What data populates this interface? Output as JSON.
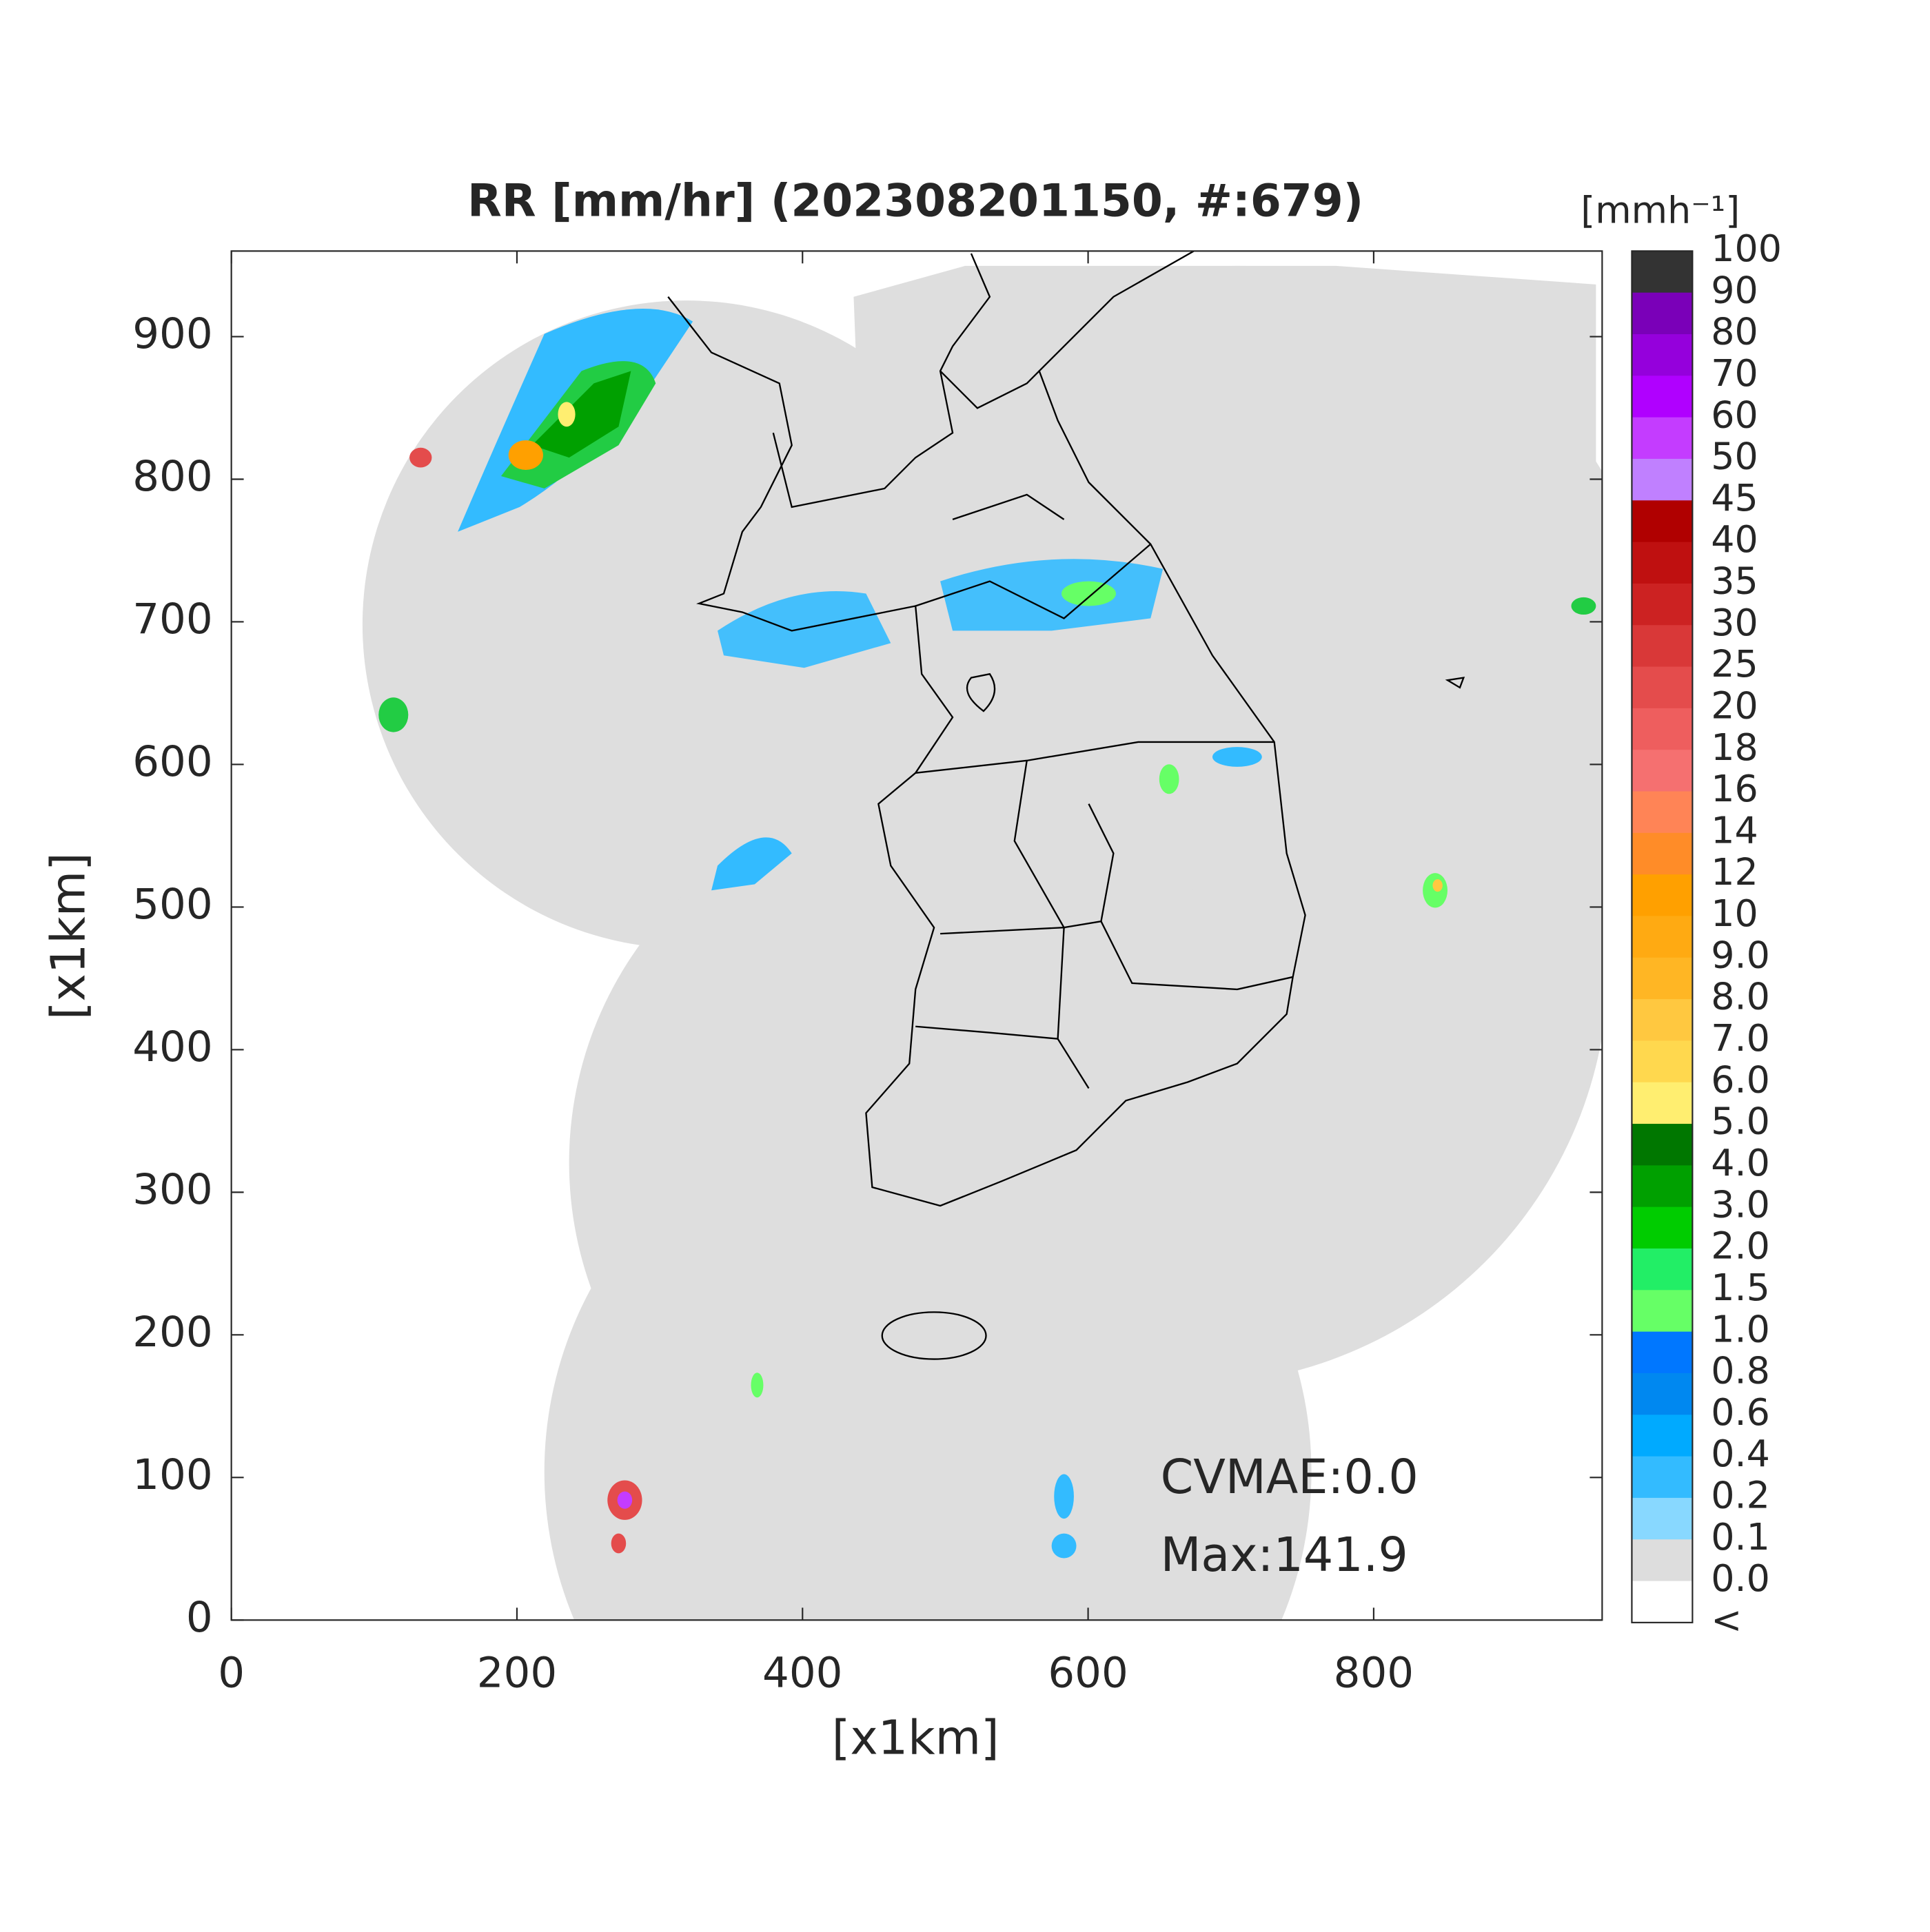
{
  "title": "RR [mm/hr] (202308201150, #:679)",
  "x_label": "[x1km]",
  "y_label": "[x1km]",
  "xlim": [
    0,
    960
  ],
  "ylim": [
    0,
    960
  ],
  "xticks": [
    0,
    200,
    400,
    600,
    800
  ],
  "yticks": [
    0,
    100,
    200,
    300,
    400,
    500,
    600,
    700,
    800,
    900
  ],
  "colorbar": {
    "unit": "[mmh⁻¹]",
    "labels": [
      "100",
      "90",
      "80",
      "70",
      "60",
      "50",
      "45",
      "40",
      "35",
      "30",
      "25",
      "20",
      "18",
      "16",
      "14",
      "12",
      "10",
      "9.0",
      "8.0",
      "7.0",
      "6.0",
      "5.0",
      "4.0",
      "3.0",
      "2.0",
      "1.5",
      "1.0",
      "0.8",
      "0.6",
      "0.4",
      "0.2",
      "0.1",
      "0.0",
      "<"
    ],
    "colors": [
      "#333333",
      "#7a00b8",
      "#9500dc",
      "#b000ff",
      "#c43cff",
      "#c080ff",
      "#b00000",
      "#bf1010",
      "#cc2222",
      "#d93838",
      "#e44c4c",
      "#ee5e5e",
      "#f57070",
      "#ff8456",
      "#ff8c28",
      "#ffa000",
      "#ffaa12",
      "#ffb624",
      "#ffc840",
      "#ffd84e",
      "#ffee70",
      "#007700",
      "#00a000",
      "#00cc00",
      "#22ee66",
      "#66ff66",
      "#0077ff",
      "#0088f0",
      "#00aaff",
      "#33bbff",
      "#88d8ff",
      "#dddddd",
      "#ffffff"
    ]
  },
  "annotations": [
    "CVMAE:0.0",
    "Max:141.9"
  ]
}
